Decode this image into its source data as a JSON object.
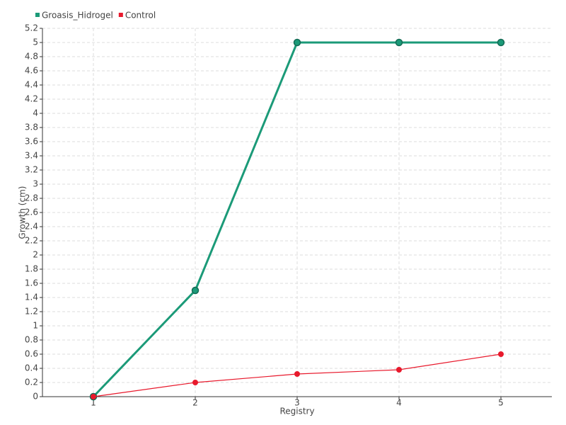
{
  "chart_data": {
    "type": "line",
    "x_label": "Registry",
    "y_label": "Growth (cm)",
    "categories": [
      "1",
      "2",
      "3",
      "4",
      "5"
    ],
    "series": [
      {
        "name": "Groasis_Hidrogel",
        "color": "#1b9a78",
        "values": [
          0,
          1.5,
          5,
          5,
          5
        ]
      },
      {
        "name": "Control",
        "color": "#e8192c",
        "values": [
          0,
          0.2,
          0.32,
          0.38,
          0.6
        ]
      }
    ],
    "ylim": [
      0,
      5.2
    ],
    "yticks": [
      0,
      0.2,
      0.4,
      0.6,
      0.8,
      1,
      1.2,
      1.4,
      1.6,
      1.8,
      2,
      2.2,
      2.4,
      2.6,
      2.8,
      3,
      3.2,
      3.4,
      3.6,
      3.8,
      4,
      4.2,
      4.4,
      4.6,
      4.8,
      5,
      5.2
    ],
    "grid": true,
    "legend": "top-left"
  }
}
